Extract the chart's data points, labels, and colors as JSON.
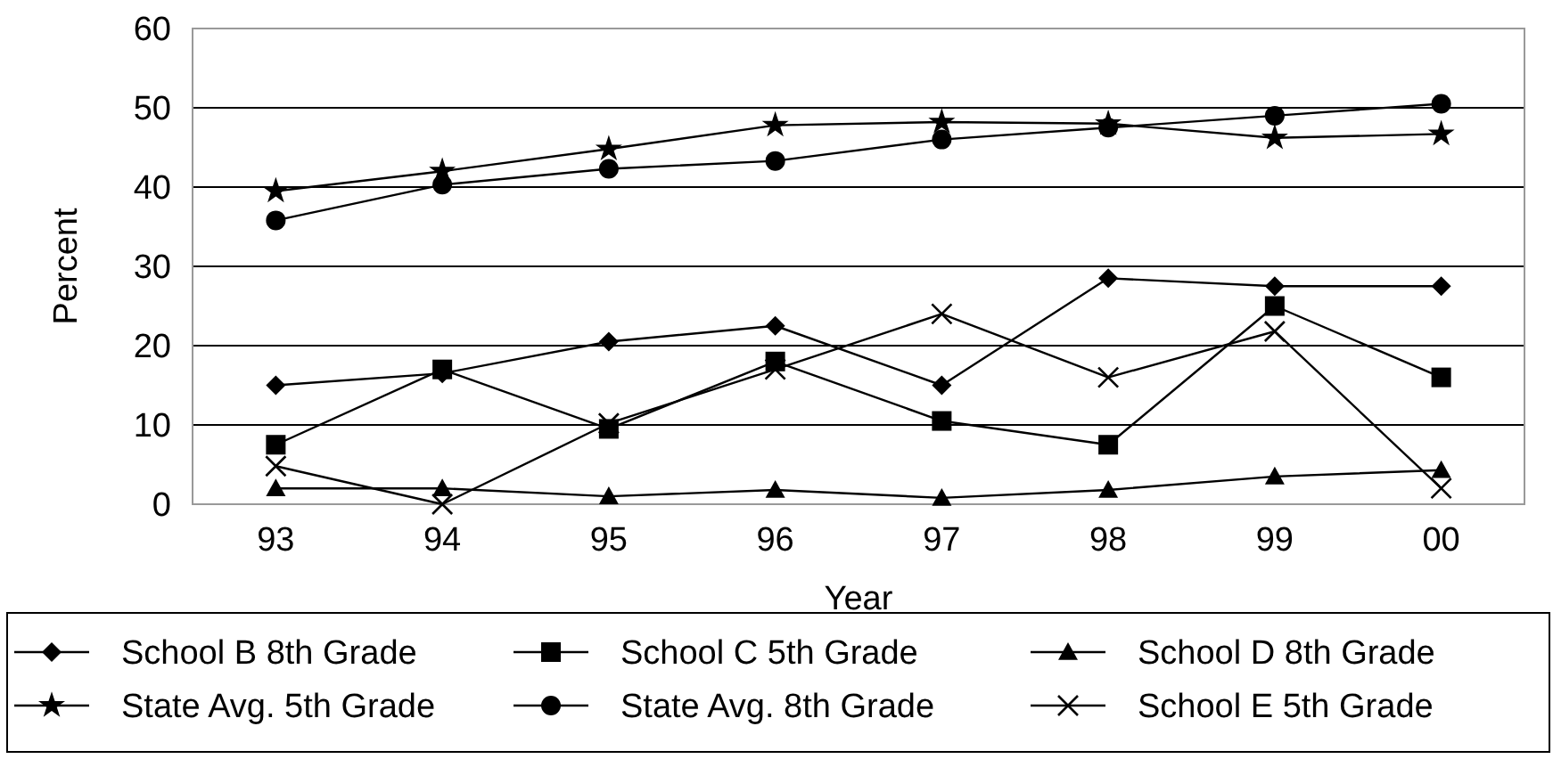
{
  "chart_data": {
    "type": "line",
    "xlabel": "Year",
    "ylabel": "Percent",
    "categories": [
      "93",
      "94",
      "95",
      "96",
      "97",
      "98",
      "99",
      "00"
    ],
    "ylim": [
      0,
      60
    ],
    "yticks": [
      0,
      10,
      20,
      30,
      40,
      50,
      60
    ],
    "grid": "y",
    "legend": "bottom",
    "series": [
      {
        "name": "School B 8th Grade",
        "color": "#000000",
        "marker": "diamond",
        "values": [
          15,
          16.5,
          20.5,
          22.5,
          15,
          28.5,
          27.5,
          27.5
        ]
      },
      {
        "name": "School C 5th Grade",
        "color": "#000000",
        "marker": "square",
        "values": [
          7.5,
          17,
          9.5,
          18,
          10.5,
          7.5,
          25,
          16
        ]
      },
      {
        "name": "School D 8th Grade",
        "color": "#000000",
        "marker": "triangle",
        "values": [
          2,
          2,
          1,
          1.8,
          0.8,
          1.8,
          3.5,
          4.3
        ]
      },
      {
        "name": "State Avg. 5th Grade",
        "color": "#000000",
        "marker": "star",
        "values": [
          39.5,
          42,
          44.8,
          47.8,
          48.2,
          48,
          46.2,
          46.7
        ]
      },
      {
        "name": "State Avg. 8th Grade",
        "color": "#000000",
        "marker": "circle",
        "values": [
          35.8,
          40.3,
          42.3,
          43.3,
          46,
          47.5,
          49,
          50.5
        ]
      },
      {
        "name": "School E 5th Grade",
        "color": "#000000",
        "marker": "cross",
        "values": [
          4.8,
          0,
          10.2,
          17,
          24,
          16,
          21.8,
          2
        ]
      }
    ]
  }
}
